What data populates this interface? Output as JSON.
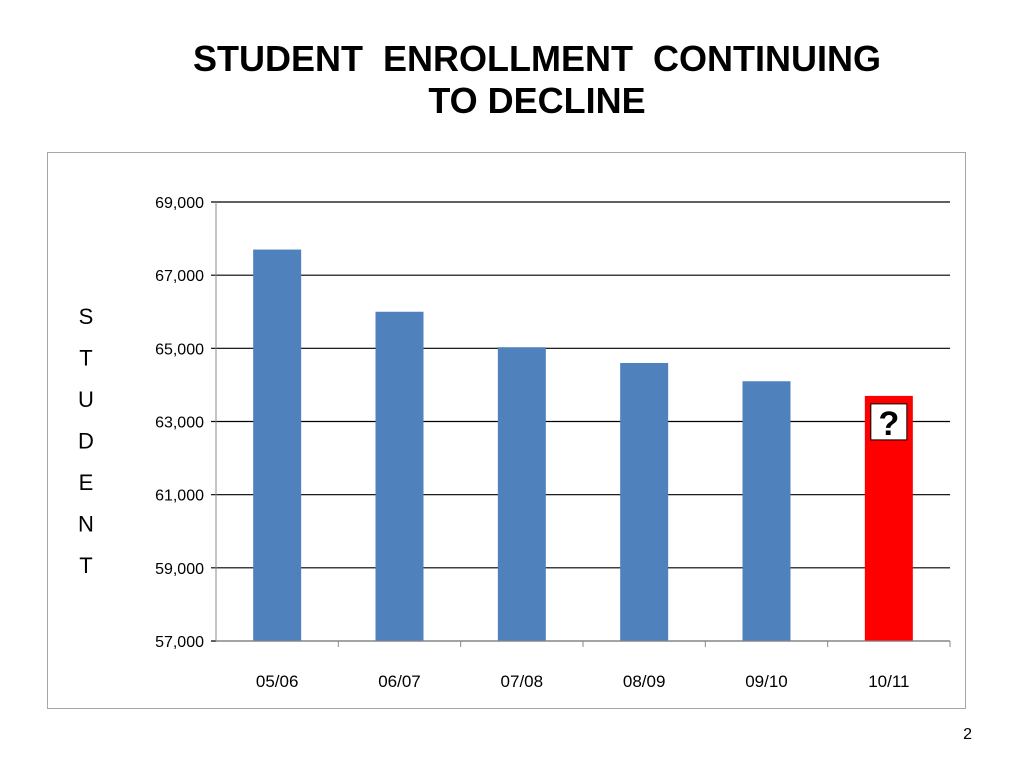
{
  "title": {
    "line1": "STUDENT  ENROLLMENT  CONTINUING",
    "line2": "TO DECLINE"
  },
  "page_number": "2",
  "chart_data": {
    "type": "bar",
    "title": "",
    "xlabel": "",
    "ylabel": "STUDENT",
    "categories": [
      "05/06",
      "06/07",
      "07/08",
      "08/09",
      "09/10",
      "10/11"
    ],
    "series": [
      {
        "values": [
          67700,
          66000,
          65030,
          64600,
          64100,
          63700
        ]
      }
    ],
    "ylim": [
      57000,
      69000
    ],
    "y_ticks": [
      57000,
      59000,
      61000,
      63000,
      65000,
      67000,
      69000
    ],
    "y_tick_labels": [
      "57,000",
      "59,000",
      "61,000",
      "63,000",
      "65,000",
      "67,000",
      "69,000"
    ],
    "grid": true,
    "legend": "none",
    "bar_color": "#4f81bd",
    "highlight_index": 5,
    "highlight_color": "#ff0000",
    "highlight_icon": "question-mark-icon"
  }
}
